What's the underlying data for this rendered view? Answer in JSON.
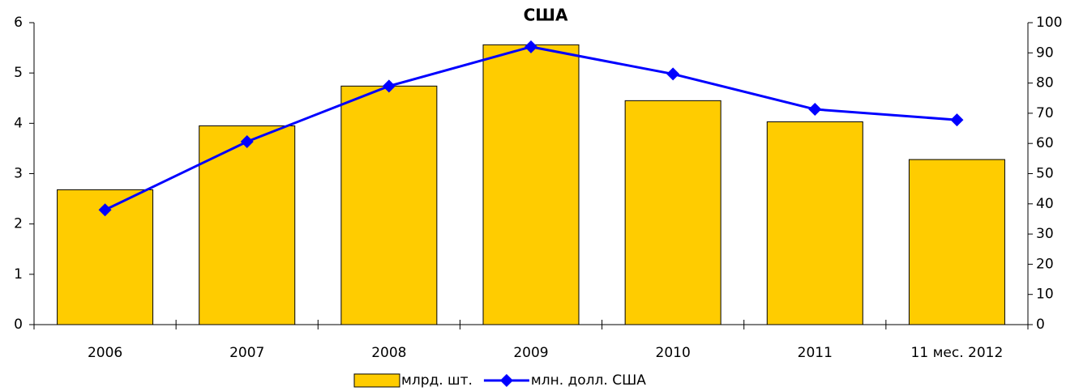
{
  "chart_data": {
    "type": "bar_line",
    "title": "США",
    "categories": [
      "2006",
      "2007",
      "2008",
      "2009",
      "2010",
      "2011",
      "11 мес. 2012"
    ],
    "series": [
      {
        "name": "млрд. шт.",
        "type": "bar",
        "color": "#ffcc00",
        "values": [
          2.68,
          3.95,
          4.74,
          5.56,
          4.45,
          4.03,
          3.28
        ]
      },
      {
        "name": "млн. долл. США",
        "type": "line",
        "axis": "y2",
        "color": "#0000ff",
        "values": [
          38,
          60.6,
          79,
          92,
          83,
          71.3,
          67.8
        ]
      }
    ],
    "ylim": [
      0,
      6
    ],
    "yticks": [
      0,
      1,
      2,
      3,
      4,
      5,
      6
    ],
    "y2lim": [
      0,
      100
    ],
    "y2ticks": [
      0,
      10,
      20,
      30,
      40,
      50,
      60,
      70,
      80,
      90,
      100
    ],
    "legend": "bottom"
  }
}
